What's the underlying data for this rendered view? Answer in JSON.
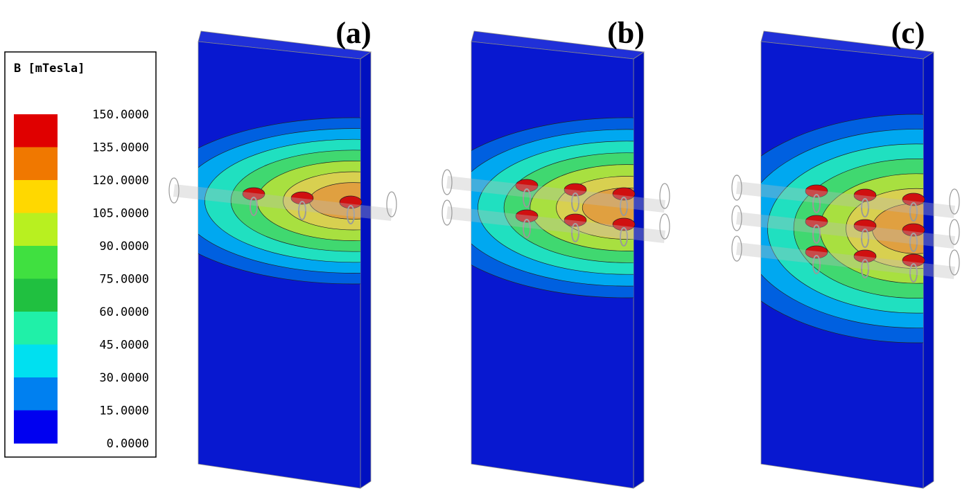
{
  "legend": {
    "title": "B [mTesla]",
    "labels": [
      "150.0000",
      "135.0000",
      "120.0000",
      "105.0000",
      "90.0000",
      "75.0000",
      "60.0000",
      "45.0000",
      "30.0000",
      "15.0000",
      "0.0000"
    ],
    "colors": [
      "#e00000",
      "#f07800",
      "#ffd800",
      "#b8f020",
      "#40e040",
      "#20c040",
      "#20f0a8",
      "#00e0f0",
      "#0080f0",
      "#0000f0"
    ]
  },
  "panels": [
    {
      "label": "(a)"
    },
    {
      "label": "(b)"
    },
    {
      "label": "(c)"
    }
  ]
}
